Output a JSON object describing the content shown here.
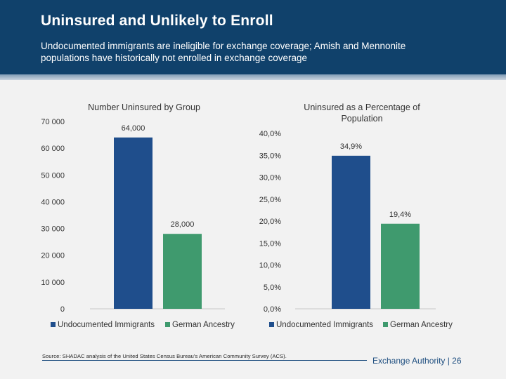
{
  "slide": {
    "title": "Uninsured and Unlikely to Enroll",
    "subtitle": "Undocumented immigrants are ineligible for exchange coverage; Amish and Mennonite populations have historically not enrolled in exchange coverage",
    "source": "Source: SHADAC analysis of the United States Census Bureau's American Community Survey (ACS).",
    "footer": "Exchange Authority  |  26"
  },
  "colors": {
    "header": "#10416b",
    "series_blue": "#1f4e8c",
    "series_green": "#3f9a6e"
  },
  "chart_data": [
    {
      "type": "bar",
      "title": "Number Uninsured by Group",
      "categories": [
        "Undocumented Immigrants",
        "German Ancestry"
      ],
      "values": [
        64000,
        28000
      ],
      "data_labels": [
        "64,000",
        "28,000"
      ],
      "colors": [
        "#1f4e8c",
        "#3f9a6e"
      ],
      "ylim": [
        0,
        70000
      ],
      "y_ticks": [
        0,
        10000,
        20000,
        30000,
        40000,
        50000,
        60000,
        70000
      ],
      "y_tick_labels": [
        "0",
        "10 000",
        "20 000",
        "30 000",
        "40 000",
        "50 000",
        "60 000",
        "70 000"
      ],
      "legend": [
        "Undocumented Immigrants",
        "German Ancestry"
      ],
      "legend_position": "bottom",
      "grid": false
    },
    {
      "type": "bar",
      "title": "Uninsured as a Percentage of Population",
      "categories": [
        "Undocumented Immigrants",
        "German Ancestry"
      ],
      "values": [
        34.9,
        19.4
      ],
      "data_labels": [
        "34,9%",
        "19,4%"
      ],
      "colors": [
        "#1f4e8c",
        "#3f9a6e"
      ],
      "ylim": [
        0,
        40
      ],
      "y_ticks": [
        0,
        5,
        10,
        15,
        20,
        25,
        30,
        35,
        40
      ],
      "y_tick_labels": [
        "0,0%",
        "5,0%",
        "10,0%",
        "15,0%",
        "20,0%",
        "25,0%",
        "30,0%",
        "35,0%",
        "40,0%"
      ],
      "legend": [
        "Undocumented Immigrants",
        "German Ancestry"
      ],
      "legend_position": "bottom",
      "grid": false
    }
  ]
}
